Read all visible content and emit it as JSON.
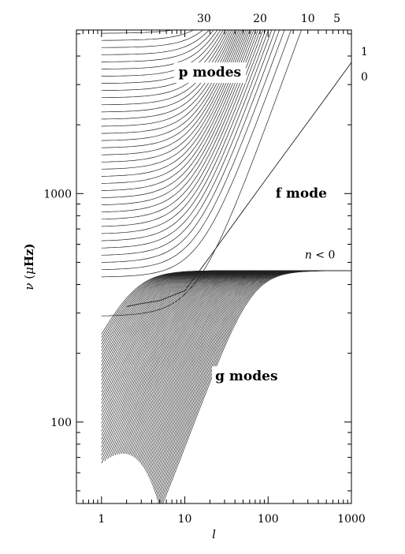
{
  "chart_data": {
    "type": "line",
    "title": "",
    "xlabel": "l",
    "ylabel_parts": {
      "nu": "ν",
      "open": " (",
      "mu": "μ",
      "unit": "Hz)"
    },
    "xscale": "log",
    "yscale": "log",
    "xlim": [
      0.5,
      1000
    ],
    "ylim": [
      44,
      5200
    ],
    "x_ticks": [
      1,
      10,
      100,
      1000
    ],
    "x_tick_labels": [
      "1",
      "10",
      "100",
      "1000"
    ],
    "y_ticks": [
      100,
      1000
    ],
    "y_tick_labels": [
      "100",
      "1000"
    ],
    "region_labels": [
      {
        "text": "p modes",
        "x": 20,
        "y": 3250
      },
      {
        "text": "f mode",
        "x": 250,
        "y": 960
      },
      {
        "text": "g modes",
        "x": 55,
        "y": 152
      }
    ],
    "n_lt0_parts": {
      "n": "n",
      "rest": " < 0",
      "x": 420,
      "y": 520
    },
    "top_n_labels": [
      {
        "text": "30",
        "x": 17
      },
      {
        "text": "20",
        "x": 80
      },
      {
        "text": "10",
        "x": 300
      },
      {
        "text": "5",
        "x": 670
      }
    ],
    "right_n_labels": [
      {
        "text": "1",
        "y": 4200
      },
      {
        "text": "0",
        "y": 3250
      }
    ],
    "p_modes": {
      "count": 45,
      "nu_first_at_l1": 290,
      "ratio": 1.056
    },
    "f_mode": {
      "x": [
        2,
        3,
        5,
        10,
        20,
        50,
        100,
        200,
        500,
        1000
      ],
      "y": [
        320,
        330,
        340,
        376,
        530,
        840,
        1190,
        1680,
        2650,
        3750
      ]
    },
    "g_modes": {
      "count": 80,
      "nu_at_l1_first": 265,
      "step": 0.96,
      "nu_max": 460
    }
  }
}
